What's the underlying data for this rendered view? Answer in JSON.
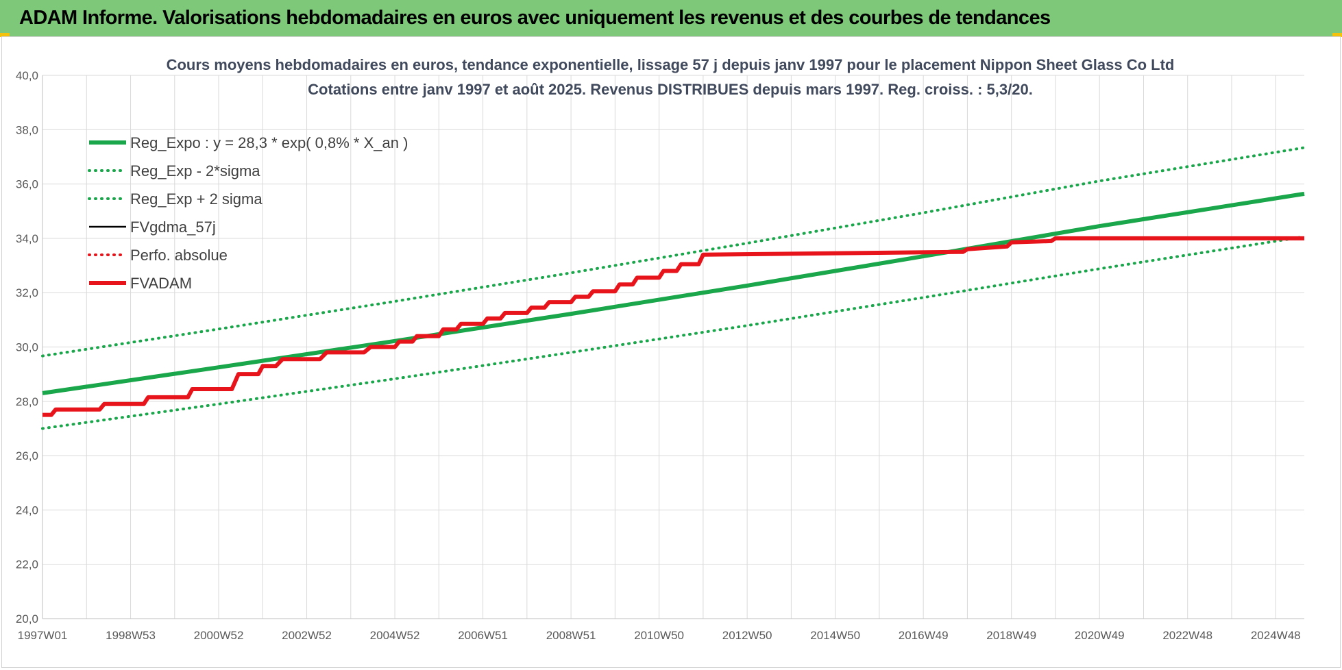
{
  "header": {
    "title": "ADAM Informe. Valorisations hebdomadaires en euros avec uniquement les revenus et des courbes de tendances"
  },
  "colors": {
    "header_bg": "#7ec87a",
    "trend_green": "#1aa64a",
    "series_red": "#e8141b",
    "series_black": "#000000",
    "grid": "#d9d9d9"
  },
  "chart_data": {
    "type": "line",
    "title_lines": [
      "Cours moyens hebdomadaires en euros, tendance exponentielle, lissage 57 j depuis janv 1997 pour le placement Nippon Sheet Glass Co Ltd",
      "Cotations entre janv 1997 et août 2025.  Revenus DISTRIBUES depuis mars 1997. Reg. croiss. : 5,3/20."
    ],
    "ylim": [
      20,
      40
    ],
    "y_ticks": [
      "20,0",
      "22,0",
      "24,0",
      "26,0",
      "28,0",
      "30,0",
      "32,0",
      "34,0",
      "36,0",
      "38,0",
      "40,0"
    ],
    "x_range": [
      1997.0,
      2025.65
    ],
    "x_ticks": [
      {
        "label": "1997W01",
        "year": 1997.0
      },
      {
        "label": "1998W53",
        "year": 1999.0
      },
      {
        "label": "2000W52",
        "year": 2001.0
      },
      {
        "label": "2002W52",
        "year": 2003.0
      },
      {
        "label": "2004W52",
        "year": 2005.0
      },
      {
        "label": "2006W51",
        "year": 2007.0
      },
      {
        "label": "2008W51",
        "year": 2009.0
      },
      {
        "label": "2010W50",
        "year": 2011.0
      },
      {
        "label": "2012W50",
        "year": 2013.0
      },
      {
        "label": "2014W50",
        "year": 2015.0
      },
      {
        "label": "2016W49",
        "year": 2017.0
      },
      {
        "label": "2018W49",
        "year": 2019.0
      },
      {
        "label": "2020W49",
        "year": 2021.0
      },
      {
        "label": "2022W48",
        "year": 2023.0
      },
      {
        "label": "2024W48",
        "year": 2025.0
      }
    ],
    "grid": true,
    "legend_position": "top-left",
    "series": [
      {
        "name": "Reg_Expo : y = 28,3 * exp( 0,8% *  X_an )",
        "style": "solid-thick",
        "color": "#1aa64a",
        "x": [
          1997.0,
          2001.0,
          2005.0,
          2009.0,
          2013.0,
          2017.0,
          2021.0,
          2025.65
        ],
        "y": [
          28.3,
          29.25,
          30.22,
          31.22,
          32.26,
          33.34,
          34.45,
          35.64
        ]
      },
      {
        "name": "Reg_Exp - 2*sigma",
        "style": "dotted",
        "color": "#1aa64a",
        "x": [
          1997.0,
          2001.0,
          2005.0,
          2009.0,
          2013.0,
          2017.0,
          2021.0,
          2025.65
        ],
        "y": [
          27.0,
          27.9,
          28.83,
          29.8,
          30.79,
          31.82,
          32.88,
          34.06
        ]
      },
      {
        "name": "Reg_Exp + 2 sigma",
        "style": "dotted",
        "color": "#1aa64a",
        "x": [
          1997.0,
          2001.0,
          2005.0,
          2009.0,
          2013.0,
          2017.0,
          2021.0,
          2025.65
        ],
        "y": [
          29.67,
          30.66,
          31.68,
          32.73,
          33.82,
          34.94,
          36.11,
          37.34
        ]
      },
      {
        "name": "FVgdma_57j",
        "style": "solid-thin",
        "color": "#000000",
        "x": [
          1997.0,
          1997.2,
          1997.3,
          1998.3,
          1998.4,
          1999.3,
          1999.4,
          2000.3,
          2000.4,
          2001.3,
          2001.45,
          2001.9,
          2002.0,
          2002.3,
          2002.45,
          2003.3,
          2003.45,
          2004.3,
          2004.45,
          2005.0,
          2005.1,
          2005.4,
          2005.5,
          2006.0,
          2006.1,
          2006.4,
          2006.5,
          2007.0,
          2007.1,
          2007.4,
          2007.5,
          2008.0,
          2008.1,
          2008.4,
          2008.5,
          2009.0,
          2009.1,
          2009.4,
          2009.5,
          2010.0,
          2010.1,
          2010.4,
          2010.5,
          2011.0,
          2011.1,
          2011.4,
          2011.5,
          2011.9,
          2012.0,
          2017.9,
          2018.0,
          2018.9,
          2019.0,
          2019.9,
          2020.0,
          2025.65
        ],
        "y": [
          27.5,
          27.5,
          27.7,
          27.7,
          27.9,
          27.9,
          28.15,
          28.15,
          28.45,
          28.45,
          29.0,
          29.0,
          29.3,
          29.3,
          29.55,
          29.55,
          29.8,
          29.8,
          30.0,
          30.0,
          30.2,
          30.2,
          30.4,
          30.4,
          30.65,
          30.65,
          30.85,
          30.85,
          31.05,
          31.05,
          31.25,
          31.25,
          31.45,
          31.45,
          31.65,
          31.65,
          31.85,
          31.85,
          32.05,
          32.05,
          32.3,
          32.3,
          32.55,
          32.55,
          32.8,
          32.8,
          33.05,
          33.05,
          33.4,
          33.5,
          33.6,
          33.7,
          33.85,
          33.9,
          34.0,
          34.0
        ]
      },
      {
        "name": "Perfo. absolue",
        "style": "dotted",
        "color": "#e8141b",
        "x": [],
        "y": []
      },
      {
        "name": "FVADAM",
        "style": "solid-thick",
        "color": "#e8141b",
        "x": [
          1997.0,
          1997.2,
          1997.3,
          1998.3,
          1998.4,
          1999.3,
          1999.4,
          2000.3,
          2000.4,
          2001.3,
          2001.45,
          2001.9,
          2002.0,
          2002.3,
          2002.45,
          2003.3,
          2003.45,
          2004.3,
          2004.45,
          2005.0,
          2005.1,
          2005.4,
          2005.5,
          2006.0,
          2006.1,
          2006.4,
          2006.5,
          2007.0,
          2007.1,
          2007.4,
          2007.5,
          2008.0,
          2008.1,
          2008.4,
          2008.5,
          2009.0,
          2009.1,
          2009.4,
          2009.5,
          2010.0,
          2010.1,
          2010.4,
          2010.5,
          2011.0,
          2011.1,
          2011.4,
          2011.5,
          2011.9,
          2012.0,
          2017.9,
          2018.0,
          2018.9,
          2019.0,
          2019.9,
          2020.0,
          2025.65
        ],
        "y": [
          27.5,
          27.5,
          27.7,
          27.7,
          27.9,
          27.9,
          28.15,
          28.15,
          28.45,
          28.45,
          29.0,
          29.0,
          29.3,
          29.3,
          29.55,
          29.55,
          29.8,
          29.8,
          30.0,
          30.0,
          30.2,
          30.2,
          30.4,
          30.4,
          30.65,
          30.65,
          30.85,
          30.85,
          31.05,
          31.05,
          31.25,
          31.25,
          31.45,
          31.45,
          31.65,
          31.65,
          31.85,
          31.85,
          32.05,
          32.05,
          32.3,
          32.3,
          32.55,
          32.55,
          32.8,
          32.8,
          33.05,
          33.05,
          33.4,
          33.5,
          33.6,
          33.7,
          33.85,
          33.9,
          34.0,
          34.0
        ]
      }
    ]
  }
}
